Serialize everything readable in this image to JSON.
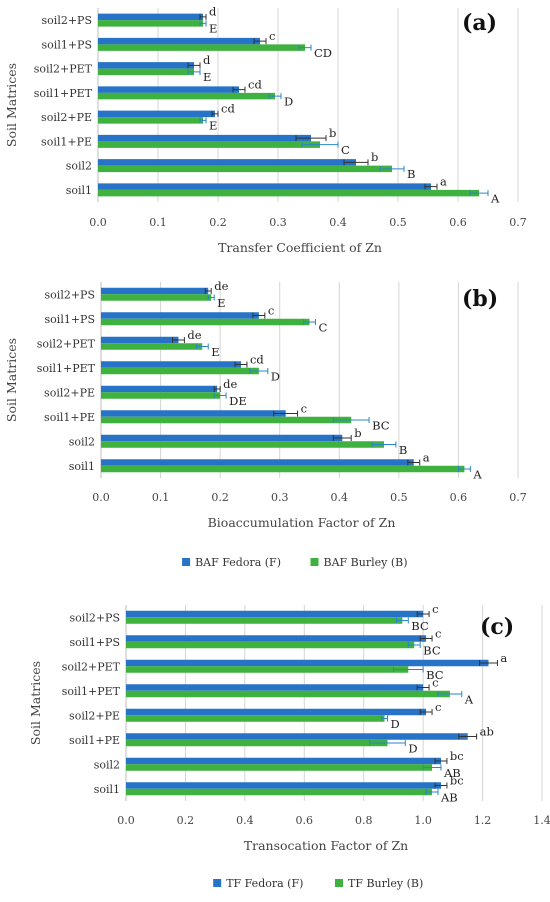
{
  "chart_data": [
    {
      "type": "bar",
      "orientation": "horizontal",
      "panel_label": "(a)",
      "xlabel": "Transfer Coefficient of Zn",
      "ylabel": "Soil Matrices",
      "xlim": [
        0,
        0.7
      ],
      "ticks": [
        "0.0",
        "0.1",
        "0.2",
        "0.3",
        "0.4",
        "0.5",
        "0.6",
        "0.7"
      ],
      "tick_values": [
        0,
        0.1,
        0.2,
        0.3,
        0.4,
        0.5,
        0.6,
        0.7
      ],
      "grid": true,
      "categories": [
        "soil1",
        "soil2",
        "soil1+PE",
        "soil2+PE",
        "soil1+PET",
        "soil2+PET",
        "soil1+PS",
        "soil2+PS"
      ],
      "series": [
        {
          "color": "#2673c8",
          "values": [
            0.555,
            0.43,
            0.355,
            0.195,
            0.235,
            0.16,
            0.27,
            0.175
          ],
          "errors": [
            0.01,
            0.02,
            0.025,
            0.005,
            0.01,
            0.01,
            0.01,
            0.005
          ],
          "letters": [
            "a",
            "b",
            "b",
            "cd",
            "cd",
            "d",
            "c",
            "d"
          ]
        },
        {
          "color": "#3eb13e",
          "values": [
            0.635,
            0.49,
            0.37,
            0.175,
            0.295,
            0.16,
            0.345,
            0.175
          ],
          "errors": [
            0.015,
            0.02,
            0.03,
            0.005,
            0.01,
            0.01,
            0.01,
            0.005
          ],
          "letters": [
            "A",
            "B",
            "C",
            "E",
            "D",
            "E",
            "CD",
            "E"
          ]
        }
      ]
    },
    {
      "type": "bar",
      "orientation": "horizontal",
      "panel_label": "(b)",
      "xlabel": "Bioaccumulation Factor of Zn",
      "ylabel": "Soil Matrices",
      "xlim": [
        0,
        0.7
      ],
      "ticks": [
        "0.0",
        "0.1",
        "0.2",
        "0.3",
        "0.4",
        "0.5",
        "0.6",
        "0.7"
      ],
      "tick_values": [
        0,
        0.1,
        0.2,
        0.3,
        0.4,
        0.5,
        0.6,
        0.7
      ],
      "grid": true,
      "categories": [
        "soil1",
        "soil2",
        "soil1+PE",
        "soil2+PE",
        "soil1+PET",
        "soil2+PET",
        "soil1+PS",
        "soil2+PS"
      ],
      "series": [
        {
          "name": "BAF Fedora (F)",
          "color": "#2673c8",
          "values": [
            0.525,
            0.405,
            0.31,
            0.195,
            0.235,
            0.13,
            0.265,
            0.18
          ],
          "errors": [
            0.01,
            0.015,
            0.02,
            0.005,
            0.01,
            0.01,
            0.01,
            0.005
          ],
          "letters": [
            "a",
            "b",
            "c",
            "de",
            "cd",
            "de",
            "c",
            "de"
          ]
        },
        {
          "name": "BAF Burley (B)",
          "color": "#3eb13e",
          "values": [
            0.61,
            0.475,
            0.42,
            0.2,
            0.265,
            0.17,
            0.35,
            0.185
          ],
          "errors": [
            0.01,
            0.02,
            0.03,
            0.01,
            0.015,
            0.01,
            0.01,
            0.005
          ],
          "letters": [
            "A",
            "B",
            "BC",
            "DE",
            "D",
            "E",
            "C",
            "E"
          ]
        }
      ],
      "legend_position": "bottom"
    },
    {
      "type": "bar",
      "orientation": "horizontal",
      "panel_label": "(c)",
      "xlabel": "Transocation Factor of Zn",
      "ylabel": "Soil Matrices",
      "xlim": [
        0,
        1.4
      ],
      "ticks": [
        "0.0",
        "0.2",
        "0.4",
        "0.6",
        "0.8",
        "1.0",
        "1.2",
        "1.4"
      ],
      "tick_values": [
        0,
        0.2,
        0.4,
        0.6,
        0.8,
        1.0,
        1.2,
        1.4
      ],
      "grid": true,
      "categories": [
        "soil1",
        "soil2",
        "soil1+PE",
        "soil2+PE",
        "soil1+PET",
        "soil2+PET",
        "soil1+PS",
        "soil2+PS"
      ],
      "series": [
        {
          "name": "TF Fedora (F)",
          "color": "#2673c8",
          "values": [
            1.06,
            1.06,
            1.15,
            1.01,
            1.0,
            1.22,
            1.01,
            1.0
          ],
          "errors": [
            0.02,
            0.02,
            0.03,
            0.02,
            0.02,
            0.03,
            0.02,
            0.02
          ],
          "letters": [
            "bc",
            "bc",
            "ab",
            "c",
            "c",
            "a",
            "c",
            "c"
          ]
        },
        {
          "name": "TF Burley (B)",
          "color": "#3eb13e",
          "values": [
            1.03,
            1.03,
            0.88,
            0.87,
            1.09,
            0.95,
            0.97,
            0.93
          ],
          "errors": [
            0.02,
            0.03,
            0.06,
            0.01,
            0.04,
            0.05,
            0.02,
            0.02
          ],
          "letters": [
            "AB",
            "AB",
            "D",
            "D",
            "A",
            "BC",
            "BC",
            "BC"
          ]
        }
      ],
      "legend_position": "bottom"
    }
  ]
}
